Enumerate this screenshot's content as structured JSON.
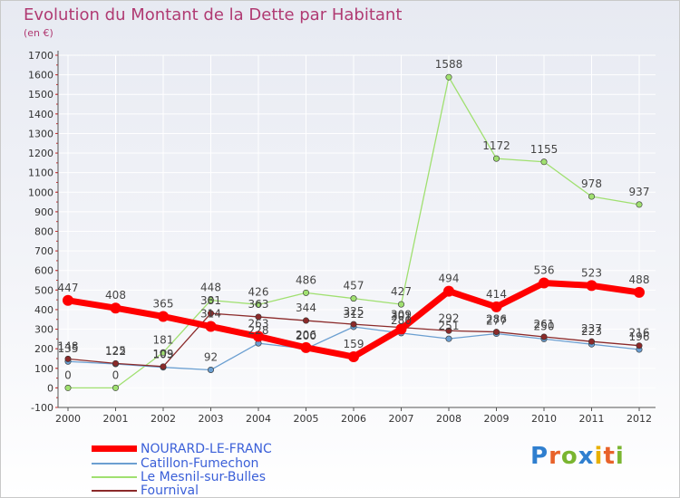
{
  "title": "Evolution du Montant de la Dette par Habitant",
  "unit": "(en €)",
  "logo": {
    "text": "Proxiti",
    "colors": [
      "#2f7fcf",
      "#e8622a",
      "#7ab530",
      "#2f7fcf",
      "#e8b000",
      "#e8622a",
      "#7ab530"
    ]
  },
  "chart_data": {
    "type": "line",
    "title": "Evolution du Montant de la Dette par Habitant",
    "ylabel": "(en €)",
    "xlabel": "",
    "x": [
      "2000",
      "2001",
      "2002",
      "2003",
      "2004",
      "2005",
      "2006",
      "2007",
      "2008",
      "2009",
      "2010",
      "2011",
      "2012"
    ],
    "ylim": [
      -100,
      1700
    ],
    "yticks": [
      "-100",
      "0",
      "100",
      "200",
      "300",
      "400",
      "500",
      "600",
      "700",
      "800",
      "900",
      "1000",
      "1100",
      "1200",
      "1300",
      "1400",
      "1500",
      "1600",
      "1700"
    ],
    "grid": true,
    "legend": "bottom-left",
    "series": [
      {
        "name": "NOURARD-LE-FRANC",
        "color": "#ff0000",
        "values": [
          447,
          408,
          365,
          314,
          263,
          206,
          159,
          301,
          494,
          414,
          536,
          523,
          488
        ]
      },
      {
        "name": "Catillon-Fumechon",
        "color": "#6b9fd1",
        "values": [
          135,
          122,
          105,
          92,
          228,
          200,
          312,
          280,
          251,
          277,
          250,
          223,
          196
        ]
      },
      {
        "name": "Le Mesnil-sur-Bulles",
        "color": "#a0e070",
        "values": [
          0,
          0,
          181,
          448,
          426,
          486,
          457,
          427,
          1588,
          1172,
          1155,
          978,
          937
        ]
      },
      {
        "name": "Fournival",
        "color": "#8b2a2a",
        "values": [
          148,
          125,
          109,
          381,
          363,
          344,
          325,
          309,
          292,
          286,
          261,
          237,
          216
        ]
      }
    ]
  }
}
